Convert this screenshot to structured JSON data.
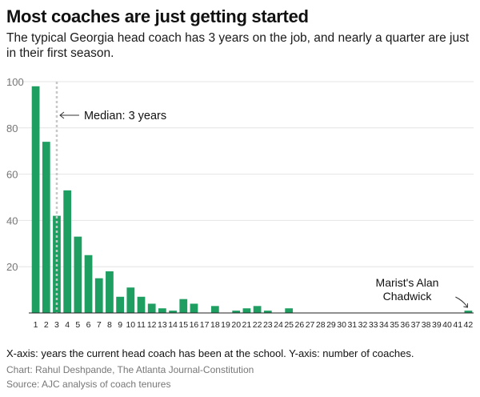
{
  "header": {
    "title": "Most coaches are just getting started",
    "subtitle": "The typical Georgia head coach has 3 years on the job, and nearly a quarter are just in their first season."
  },
  "footer": {
    "axis_note": "X-axis: years the current head coach has been at the school. Y-axis: number of coaches.",
    "credit": "Chart: Rahul Deshpande, The Atlanta Journal-Constitution",
    "source": "Source: AJC analysis of coach tenures"
  },
  "chart_data": {
    "type": "bar",
    "categories": [
      "1",
      "2",
      "3",
      "4",
      "5",
      "6",
      "7",
      "8",
      "9",
      "10",
      "11",
      "12",
      "13",
      "14",
      "15",
      "16",
      "17",
      "18",
      "19",
      "20",
      "21",
      "22",
      "23",
      "24",
      "25",
      "26",
      "27",
      "28",
      "29",
      "30",
      "31",
      "32",
      "33",
      "34",
      "35",
      "36",
      "37",
      "38",
      "39",
      "40",
      "41",
      "42"
    ],
    "values": [
      98,
      74,
      42,
      53,
      33,
      25,
      15,
      18,
      7,
      11,
      7,
      4,
      2,
      1,
      6,
      4,
      0,
      3,
      0,
      1,
      2,
      3,
      1,
      0,
      2,
      0,
      0,
      0,
      0,
      0,
      0,
      0,
      0,
      0,
      0,
      0,
      0,
      0,
      0,
      0,
      0,
      1
    ],
    "ylim": [
      0,
      100
    ],
    "yticks": [
      20,
      40,
      60,
      80,
      100
    ],
    "grid": true,
    "bar_color": "#1f9e62",
    "median": {
      "x": 3,
      "label": "Median: 3 years",
      "color": "#c8c8c8"
    },
    "annotations": [
      {
        "label_lines": [
          "Marist's Alan",
          "Chadwick"
        ],
        "x": 42
      }
    ]
  }
}
